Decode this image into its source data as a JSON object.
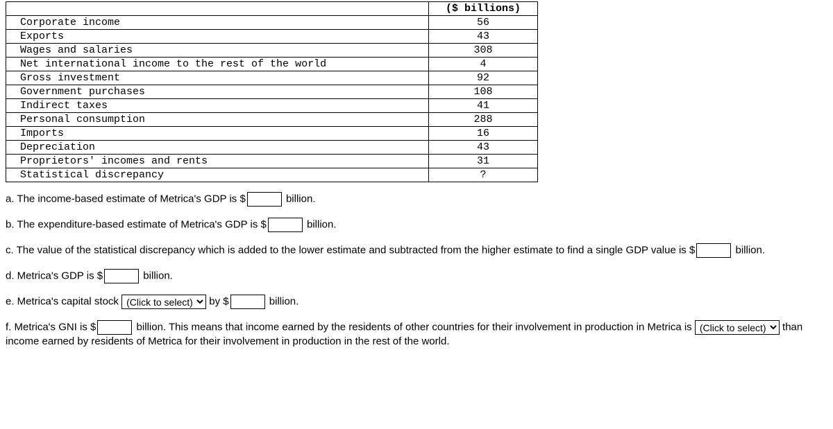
{
  "table": {
    "header_col2": "($ billions)",
    "rows": [
      {
        "label": "Corporate income",
        "value": "56"
      },
      {
        "label": "Exports",
        "value": "43"
      },
      {
        "label": "Wages and salaries",
        "value": "308"
      },
      {
        "label": "Net international income to the rest of the world",
        "value": "4"
      },
      {
        "label": "Gross investment",
        "value": "92"
      },
      {
        "label": "Government purchases",
        "value": "108"
      },
      {
        "label": "Indirect taxes",
        "value": "41"
      },
      {
        "label": "Personal consumption",
        "value": "288"
      },
      {
        "label": "Imports",
        "value": "16"
      },
      {
        "label": "Depreciation",
        "value": "43"
      },
      {
        "label": "Proprietors' incomes and rents",
        "value": "31"
      },
      {
        "label": "Statistical discrepancy",
        "value": "?"
      }
    ]
  },
  "questions": {
    "a_pre": "a. The income-based estimate of Metrica's GDP is $",
    "a_post": " billion.",
    "b_pre": "b. The expenditure-based estimate of Metrica's GDP is $",
    "b_post": " billion.",
    "c_pre": "c. The value of the statistical discrepancy which is added to the lower estimate and subtracted from the higher estimate to find a single GDP value is $",
    "c_post": " billion.",
    "d_pre": "d. Metrica's GDP is $",
    "d_post": " billion.",
    "e_pre": "e. Metrica's capital stock ",
    "e_mid": " by $",
    "e_post": " billion.",
    "f_pre": "f. Metrica's GNI is $",
    "f_mid": " billion. This means that income earned by the residents of other countries for their involvement in production in Metrica is ",
    "f_post": " than income earned by residents of Metrica for their involvement in production in the rest of the world."
  },
  "select": {
    "placeholder": "(Click to select)"
  }
}
